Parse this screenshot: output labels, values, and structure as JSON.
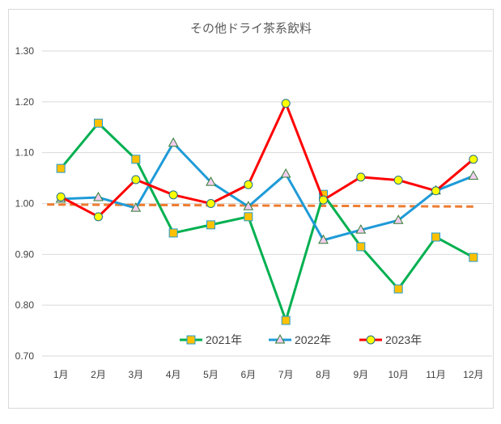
{
  "chart_data": {
    "type": "line",
    "title": "その他ドライ茶系飲料",
    "categories": [
      "1月",
      "2月",
      "3月",
      "4月",
      "5月",
      "6月",
      "7月",
      "8月",
      "9月",
      "10月",
      "11月",
      "12月"
    ],
    "ylim": [
      0.7,
      1.3
    ],
    "yticks": [
      "0.70",
      "0.80",
      "0.90",
      "1.00",
      "1.10",
      "1.20",
      "1.30"
    ],
    "grid": true,
    "legend_position": "bottom-center",
    "series": [
      {
        "name": "2021年",
        "color": "#00B050",
        "marker": "square",
        "values": [
          1.069,
          1.158,
          1.087,
          0.942,
          0.958,
          0.974,
          0.77,
          1.018,
          0.915,
          0.832,
          0.934,
          0.894
        ]
      },
      {
        "name": "2022年",
        "color": "#1F9BD7",
        "marker": "triangle",
        "values": [
          1.009,
          1.012,
          0.991,
          1.119,
          1.042,
          0.994,
          1.058,
          0.928,
          0.948,
          0.967,
          1.025,
          1.054
        ]
      },
      {
        "name": "2023年",
        "color": "#FF0000",
        "marker": "circle",
        "values": [
          1.013,
          0.974,
          1.047,
          1.017,
          1.0,
          1.037,
          1.197,
          1.007,
          1.052,
          1.046,
          1.025,
          1.087
        ]
      }
    ],
    "trendline": {
      "color": "#ED7D31",
      "style": "dashed",
      "start": 0.998,
      "end": 0.994
    }
  }
}
